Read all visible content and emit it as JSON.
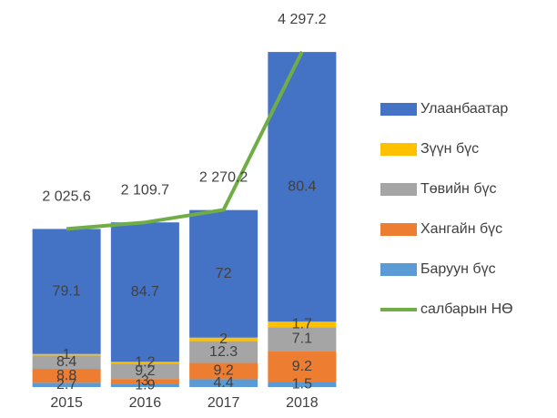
{
  "chart_data": {
    "type": "stacked_bar_line",
    "categories": [
      "2015",
      "2016",
      "2017",
      "2018"
    ],
    "series": [
      {
        "name": "Улаанбаатар",
        "color": "#4472c4",
        "values": [
          79.1,
          84.7,
          72.0,
          80.4
        ]
      },
      {
        "name": "Зүүн бүс",
        "color": "#ffc000",
        "values": [
          1.0,
          1.2,
          2.0,
          1.7
        ]
      },
      {
        "name": "Төвийн бүс",
        "color": "#a5a5a5",
        "values": [
          8.4,
          9.2,
          12.3,
          7.1
        ]
      },
      {
        "name": "Хангайн бүс",
        "color": "#ed7d31",
        "values": [
          8.8,
          3.0,
          9.2,
          9.2
        ]
      },
      {
        "name": "Баруун бүс",
        "color": "#5b9bd5",
        "values": [
          2.7,
          1.9,
          4.4,
          1.5
        ]
      }
    ],
    "line": {
      "name": "салбарын НӨ",
      "color": "#70ad47",
      "values": [
        2025.6,
        2109.7,
        2270.2,
        4297.2
      ],
      "value_labels": [
        "2 025.6",
        "2 109.7",
        "2 270.2",
        "4 297.2"
      ]
    }
  }
}
